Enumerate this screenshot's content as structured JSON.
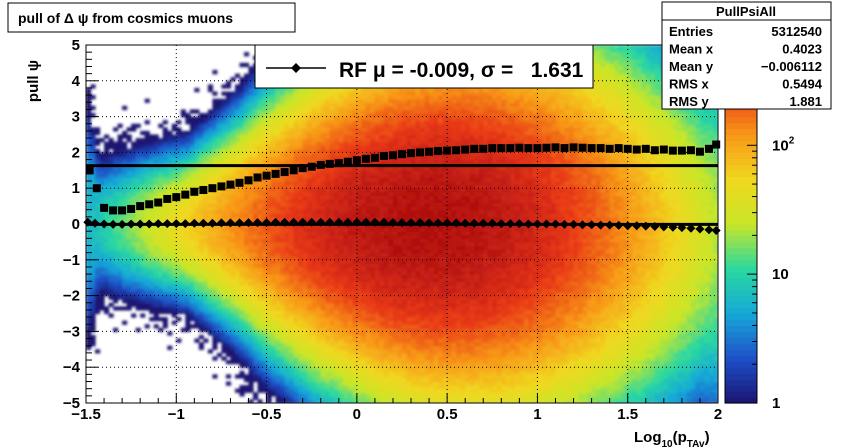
{
  "chart_data": {
    "type": "heatmap",
    "title": "pull of Δ ψ from cosmics muons",
    "xlabel": "Log",
    "xlabel_sub": "10",
    "xlabel_arg": "(p",
    "xlabel_arg_sub": "TAv",
    "xlabel_close": ")",
    "ylabel": "pull ψ",
    "xlim": [
      -1.5,
      2
    ],
    "ylim": [
      -5,
      5
    ],
    "x_ticks": [
      {
        "value": -1.5,
        "label": "−1.5"
      },
      {
        "value": -1,
        "label": "−1"
      },
      {
        "value": -0.5,
        "label": "−0.5"
      },
      {
        "value": 0,
        "label": "0"
      },
      {
        "value": 0.5,
        "label": "0.5"
      },
      {
        "value": 1,
        "label": "1"
      },
      {
        "value": 1.5,
        "label": "1.5"
      },
      {
        "value": 2,
        "label": "2"
      }
    ],
    "y_ticks": [
      {
        "value": 5,
        "label": "5"
      },
      {
        "value": 4,
        "label": "4"
      },
      {
        "value": 3,
        "label": "3"
      },
      {
        "value": 2,
        "label": "2"
      },
      {
        "value": 1,
        "label": "1"
      },
      {
        "value": 0,
        "label": "0"
      },
      {
        "value": -1,
        "label": "−1"
      },
      {
        "value": -2,
        "label": "−2"
      },
      {
        "value": -3,
        "label": "−3"
      },
      {
        "value": -4,
        "label": "−4"
      },
      {
        "value": -5,
        "label": "−5"
      }
    ],
    "grid": true,
    "colorbar": {
      "scale": "log",
      "range": [
        1,
        600
      ],
      "ticks": [
        {
          "value": 1,
          "label": "1"
        },
        {
          "value": 10,
          "label": "10"
        },
        {
          "value": 100,
          "label": "10",
          "sup": "2"
        }
      ],
      "colors": [
        "#1a1470",
        "#1e50c8",
        "#16a8d8",
        "#2ad8a0",
        "#c8e628",
        "#f0d820",
        "#f89818",
        "#e83818",
        "#b01010"
      ]
    },
    "legend": {
      "placement": "top",
      "text": "RF μ = -0.009, σ =   1.631"
    },
    "stats_box": {
      "title": "PullPsiAll",
      "rows": [
        {
          "label": "Entries",
          "value": "5312540"
        },
        {
          "label": "Mean x",
          "value": "0.4023"
        },
        {
          "label": "Mean y",
          "value": "−0.006112"
        },
        {
          "label": "RMS x",
          "value": "0.5494"
        },
        {
          "label": "RMS y",
          "value": "1.881"
        }
      ]
    },
    "reference_lines": [
      {
        "name": "σ",
        "y": 1.631
      },
      {
        "name": "μ",
        "y": -0.009
      }
    ],
    "series": [
      {
        "name": "mean",
        "marker": "diamond",
        "x": [
          -1.49,
          -1.45,
          -1.4,
          -1.35,
          -1.3,
          -1.25,
          -1.2,
          -1.15,
          -1.1,
          -1.05,
          -1.0,
          -0.95,
          -0.9,
          -0.85,
          -0.8,
          -0.75,
          -0.7,
          -0.65,
          -0.6,
          -0.55,
          -0.5,
          -0.45,
          -0.4,
          -0.35,
          -0.3,
          -0.25,
          -0.2,
          -0.15,
          -0.1,
          -0.05,
          0.0,
          0.05,
          0.1,
          0.15,
          0.2,
          0.25,
          0.3,
          0.35,
          0.4,
          0.45,
          0.5,
          0.55,
          0.6,
          0.65,
          0.7,
          0.75,
          0.8,
          0.85,
          0.9,
          0.95,
          1.0,
          1.05,
          1.1,
          1.15,
          1.2,
          1.25,
          1.3,
          1.35,
          1.4,
          1.45,
          1.5,
          1.55,
          1.6,
          1.65,
          1.7,
          1.75,
          1.8,
          1.85,
          1.9,
          1.95,
          1.99
        ],
        "y": [
          0.05,
          0.02,
          0.0,
          -0.01,
          -0.01,
          0.0,
          0.0,
          0.0,
          0.01,
          0.01,
          0.01,
          0.01,
          0.02,
          0.02,
          0.02,
          0.03,
          0.03,
          0.03,
          0.04,
          0.04,
          0.04,
          0.05,
          0.05,
          0.05,
          0.05,
          0.05,
          0.05,
          0.05,
          0.05,
          0.05,
          0.05,
          0.05,
          0.05,
          0.05,
          0.04,
          0.04,
          0.04,
          0.04,
          0.03,
          0.03,
          0.03,
          0.03,
          0.02,
          0.02,
          0.02,
          0.02,
          0.01,
          0.01,
          0.01,
          0.0,
          0.0,
          0.0,
          0.0,
          -0.01,
          -0.01,
          -0.02,
          -0.02,
          -0.03,
          -0.03,
          -0.04,
          -0.05,
          -0.05,
          -0.06,
          -0.07,
          -0.08,
          -0.09,
          -0.1,
          -0.12,
          -0.14,
          -0.16,
          -0.18
        ]
      },
      {
        "name": "rms",
        "marker": "square",
        "x": [
          -1.48,
          -1.44,
          -1.4,
          -1.35,
          -1.3,
          -1.25,
          -1.2,
          -1.15,
          -1.1,
          -1.05,
          -1.0,
          -0.95,
          -0.9,
          -0.85,
          -0.8,
          -0.75,
          -0.7,
          -0.65,
          -0.6,
          -0.55,
          -0.5,
          -0.45,
          -0.4,
          -0.35,
          -0.3,
          -0.25,
          -0.2,
          -0.15,
          -0.1,
          -0.05,
          0.0,
          0.05,
          0.1,
          0.15,
          0.2,
          0.25,
          0.3,
          0.35,
          0.4,
          0.45,
          0.5,
          0.55,
          0.6,
          0.65,
          0.7,
          0.75,
          0.8,
          0.85,
          0.9,
          0.95,
          1.0,
          1.05,
          1.1,
          1.15,
          1.2,
          1.25,
          1.3,
          1.35,
          1.4,
          1.45,
          1.5,
          1.55,
          1.6,
          1.65,
          1.7,
          1.75,
          1.8,
          1.85,
          1.9,
          1.95,
          1.99
        ],
        "y": [
          1.5,
          1.0,
          0.45,
          0.38,
          0.38,
          0.42,
          0.5,
          0.55,
          0.6,
          0.7,
          0.75,
          0.82,
          0.9,
          0.95,
          1.0,
          1.05,
          1.1,
          1.15,
          1.22,
          1.3,
          1.35,
          1.4,
          1.45,
          1.5,
          1.56,
          1.6,
          1.65,
          1.68,
          1.7,
          1.74,
          1.78,
          1.82,
          1.85,
          1.9,
          1.92,
          1.95,
          1.98,
          2.0,
          2.02,
          2.04,
          2.05,
          2.06,
          2.08,
          2.1,
          2.1,
          2.12,
          2.12,
          2.12,
          2.13,
          2.12,
          2.12,
          2.13,
          2.14,
          2.12,
          2.14,
          2.13,
          2.12,
          2.12,
          2.1,
          2.12,
          2.1,
          2.08,
          2.1,
          2.06,
          2.08,
          2.05,
          2.05,
          2.06,
          2.02,
          2.1,
          2.22
        ]
      }
    ]
  }
}
